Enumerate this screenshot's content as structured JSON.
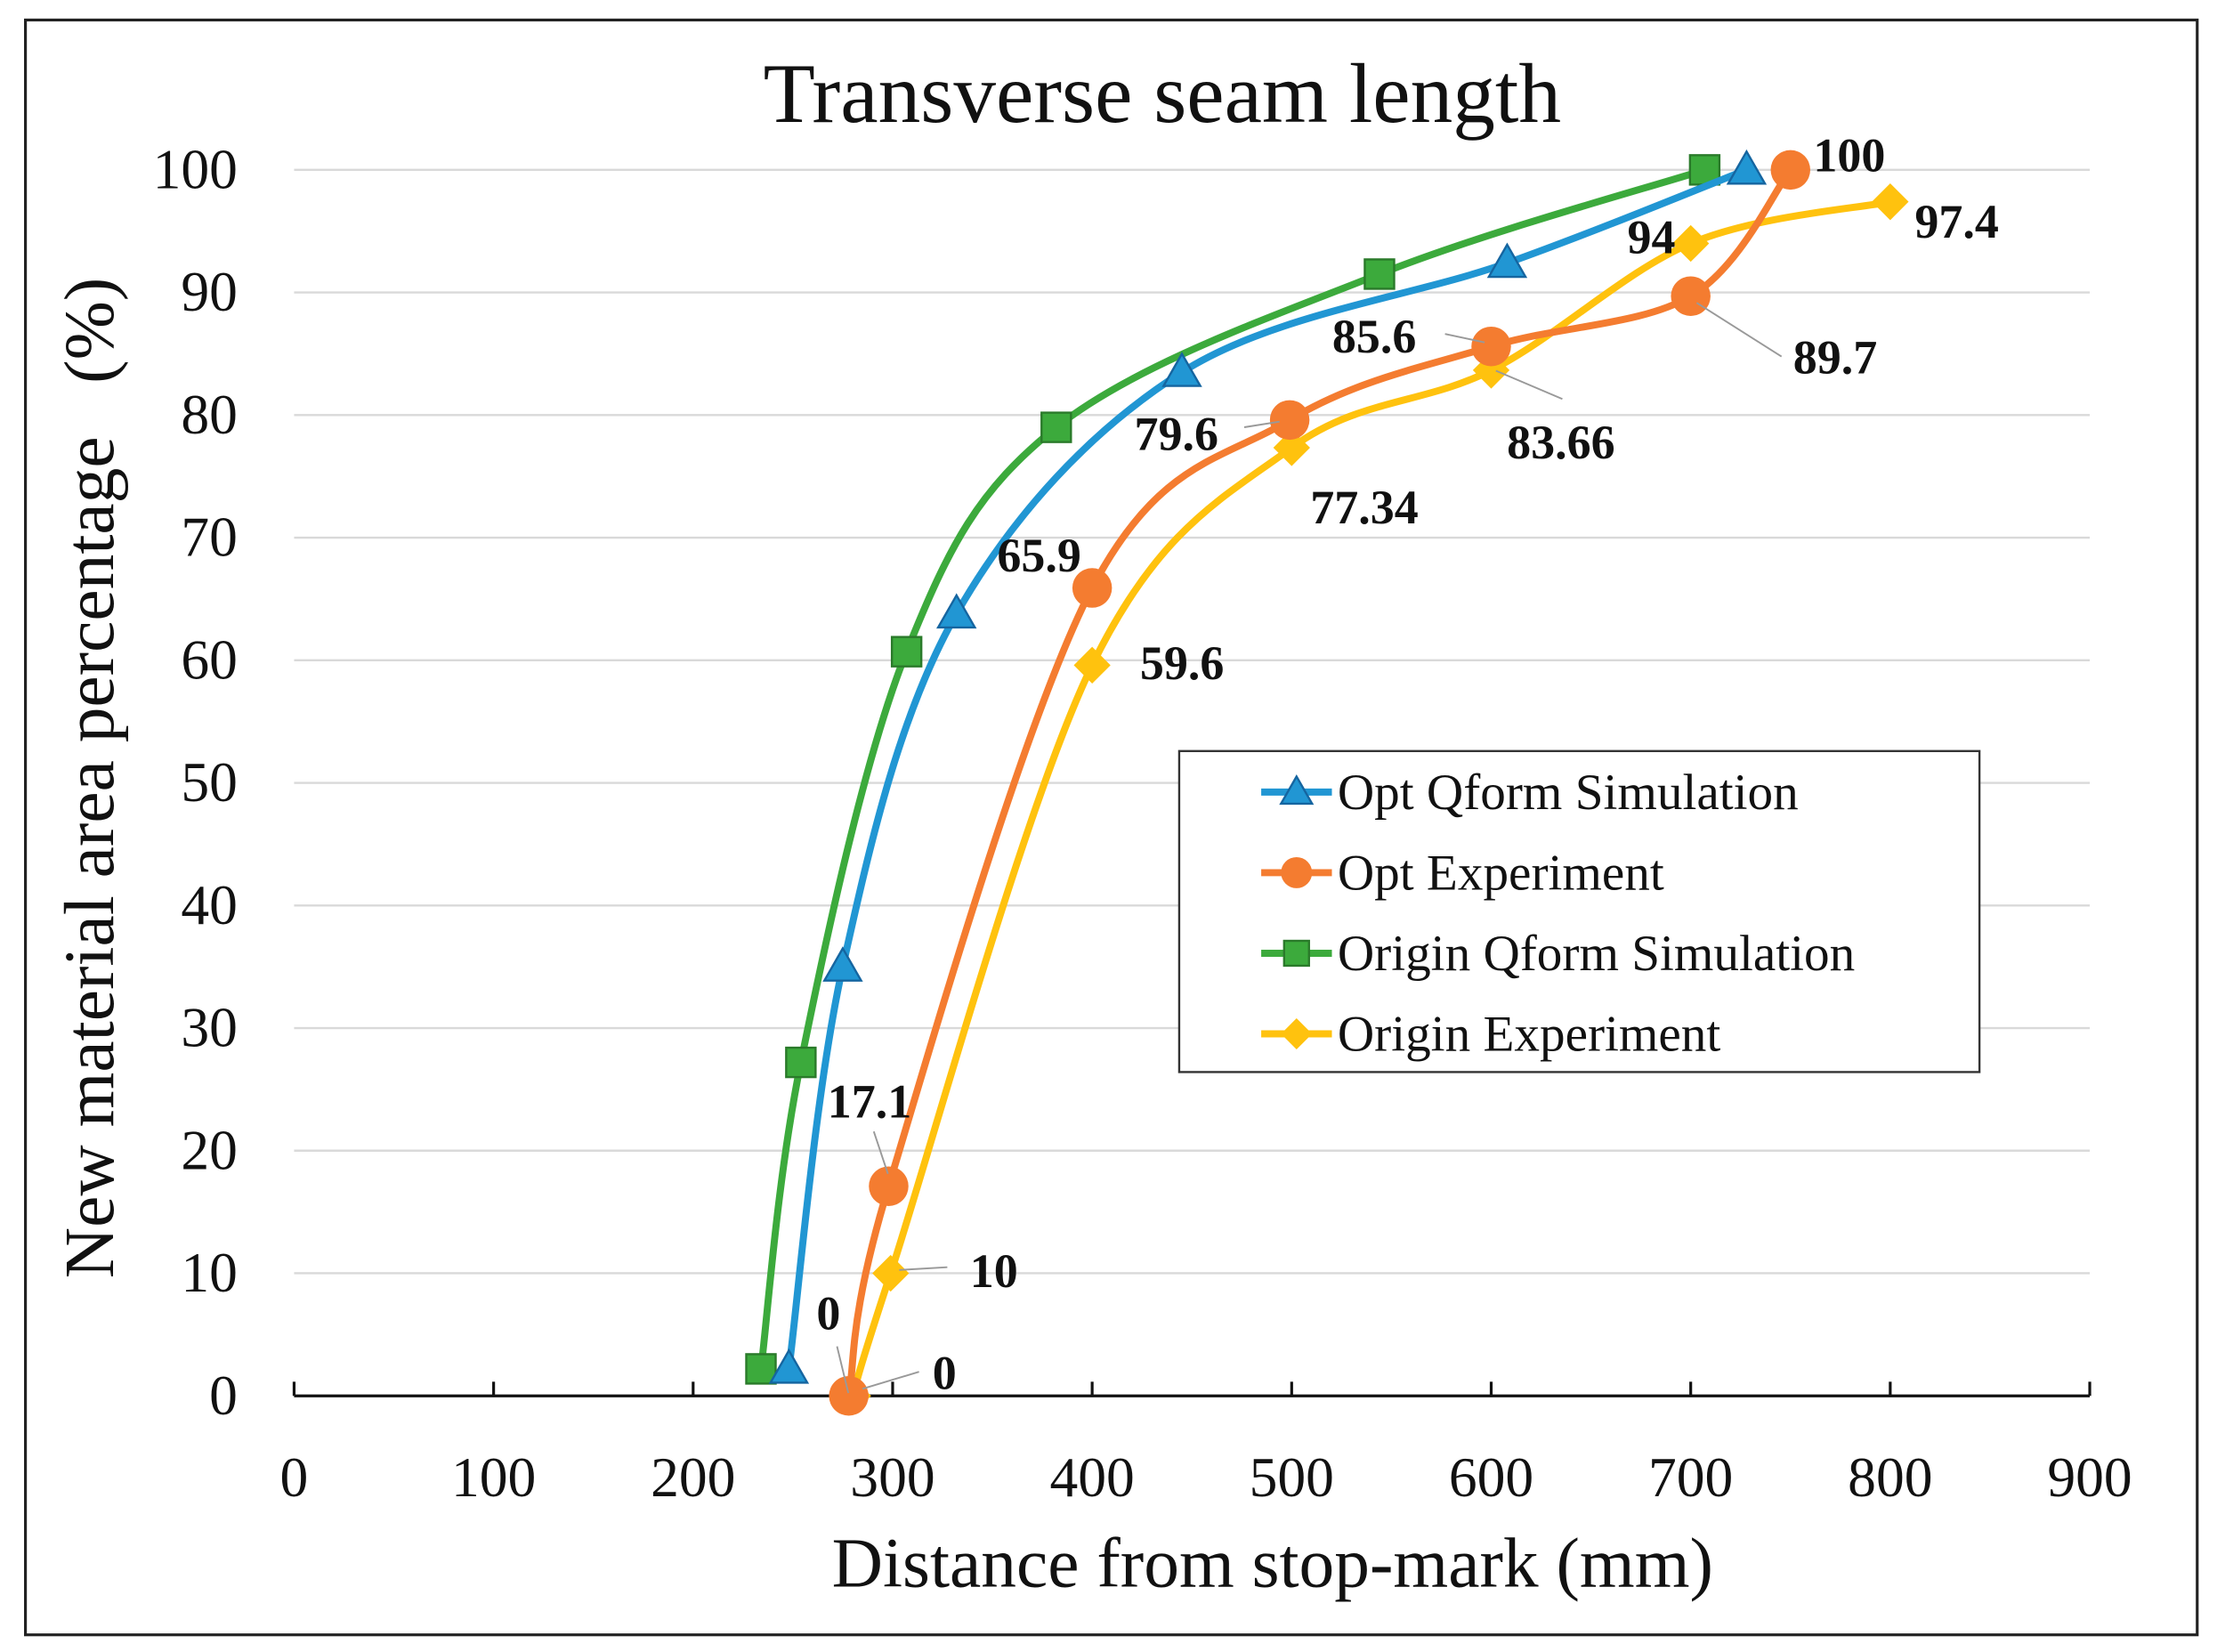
{
  "chart_data": {
    "type": "line",
    "title": "Transverse seam length",
    "xlabel": "Distance from stop-mark (mm)",
    "ylabel": "New material area percentage   (%)",
    "xlim": [
      0,
      900
    ],
    "ylim": [
      0,
      100
    ],
    "xticks": [
      0,
      100,
      200,
      300,
      400,
      500,
      600,
      700,
      800,
      900
    ],
    "yticks": [
      0,
      10,
      20,
      30,
      40,
      50,
      60,
      70,
      80,
      90,
      100
    ],
    "grid": "horizontal",
    "legend_position": "center-right",
    "series": [
      {
        "name": "Opt Qform Simulation",
        "color": "#2196D3",
        "marker": "triangle",
        "x": [
          248,
          275,
          332,
          445,
          608,
          728
        ],
        "y": [
          2.2,
          35,
          63.8,
          83.5,
          92.4,
          100
        ],
        "labels": []
      },
      {
        "name": "Opt Experiment",
        "color": "#F47C30",
        "marker": "circle",
        "x": [
          278,
          298,
          400,
          499,
          600,
          700,
          750
        ],
        "y": [
          0,
          17.1,
          65.9,
          79.6,
          85.6,
          89.7,
          100
        ],
        "labels": [
          "0",
          "17.1",
          "65.9",
          "79.6",
          "85.6",
          "89.7",
          "100"
        ]
      },
      {
        "name": "Origin Qform Simulation",
        "color": "#3CAA3C",
        "marker": "square",
        "x": [
          234,
          254,
          307,
          382,
          544,
          707
        ],
        "y": [
          2.2,
          27.2,
          60.7,
          79,
          91.5,
          100
        ],
        "labels": []
      },
      {
        "name": "Origin Experiment",
        "color": "#FFC20E",
        "marker": "diamond",
        "x": [
          280,
          299,
          400,
          500,
          600,
          700,
          800
        ],
        "y": [
          0,
          10,
          59.6,
          77.34,
          83.66,
          94,
          97.4
        ],
        "labels": [
          "0",
          "10",
          "59.6",
          "77.34",
          "83.66",
          "94",
          "97.4"
        ]
      }
    ]
  }
}
